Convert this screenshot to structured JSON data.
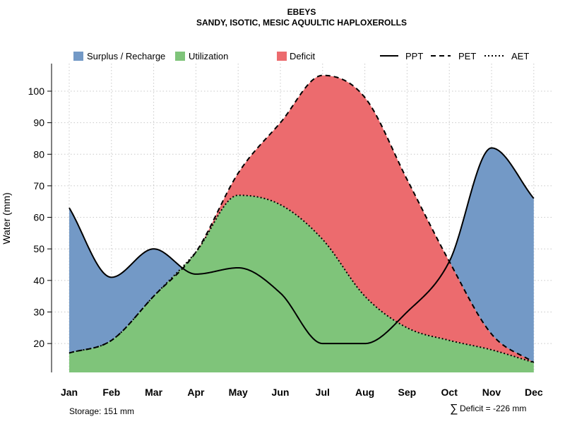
{
  "chart_data": {
    "type": "area",
    "title": "EBEYS",
    "subtitle": "SANDY, ISOTIC, MESIC AQUULTIC HAPLOXEROLLS",
    "ylabel": "Water (mm)",
    "xlabel": "",
    "categories": [
      "Jan",
      "Feb",
      "Mar",
      "Apr",
      "May",
      "Jun",
      "Jul",
      "Aug",
      "Sep",
      "Oct",
      "Nov",
      "Dec"
    ],
    "y_ticks": [
      20,
      30,
      40,
      50,
      60,
      70,
      80,
      90,
      100
    ],
    "ylim": [
      11,
      108
    ],
    "grid": true,
    "legend": [
      {
        "label": "Surplus / Recharge",
        "kind": "fill",
        "color": "#7399c6"
      },
      {
        "label": "Utilization",
        "kind": "fill",
        "color": "#7fc47a"
      },
      {
        "label": "Deficit",
        "kind": "fill",
        "color": "#ec6b6e"
      },
      {
        "label": "PPT",
        "kind": "line",
        "dash": "solid"
      },
      {
        "label": "PET",
        "kind": "line",
        "dash": "dashed"
      },
      {
        "label": "AET",
        "kind": "line",
        "dash": "dotted"
      }
    ],
    "series": [
      {
        "name": "PPT",
        "values": [
          63,
          41,
          50,
          42,
          44,
          36,
          20,
          20,
          30,
          46,
          82,
          66
        ]
      },
      {
        "name": "PET",
        "values": [
          17,
          21,
          35,
          49,
          74,
          90,
          105,
          98,
          72,
          46,
          23,
          14
        ]
      },
      {
        "name": "AET",
        "values": [
          17,
          21,
          35,
          49,
          67,
          64,
          53,
          35,
          25,
          21,
          18,
          14
        ]
      }
    ],
    "annotations": {
      "storage": "Storage: 151 mm",
      "deficit_symbol": "∑",
      "deficit": "Deficit = -226 mm"
    }
  },
  "colors": {
    "surplus": "#7399c6",
    "utilization": "#7fc47a",
    "deficit": "#ec6b6e",
    "line": "#000000",
    "grid": "#c8c8c8"
  }
}
